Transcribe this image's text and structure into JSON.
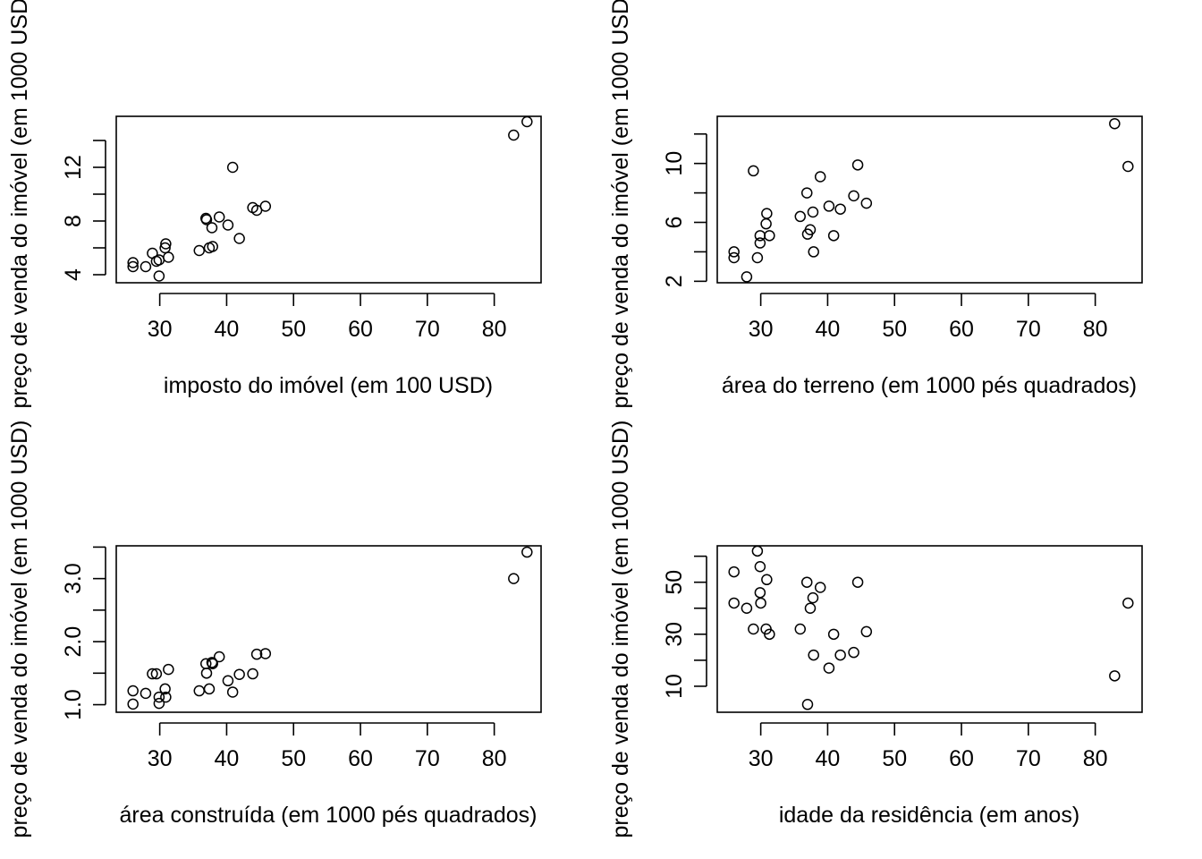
{
  "chart_data": [
    {
      "type": "scatter",
      "xlabel": "imposto do imóvel (em 100 USD)",
      "ylabel": "preço de venda do imóvel (em 1000 USD)",
      "xlim": [
        23.5,
        87
      ],
      "ylim": [
        3.4,
        15.8
      ],
      "xticks": [
        30,
        40,
        50,
        60,
        70,
        80
      ],
      "yticks": [
        4,
        8,
        12
      ],
      "yticks_minor": [
        6,
        10,
        14
      ],
      "x": [
        26.0,
        26.0,
        27.9,
        28.9,
        29.5,
        29.9,
        29.9,
        30.8,
        30.9,
        31.3,
        35.9,
        36.9,
        37.0,
        37.4,
        37.8,
        37.9,
        38.9,
        40.2,
        40.9,
        41.9,
        43.9,
        44.5,
        45.8,
        82.9,
        84.9
      ],
      "y": [
        4.9,
        4.6,
        4.6,
        5.6,
        5.0,
        3.9,
        5.1,
        6.0,
        6.3,
        5.3,
        5.8,
        8.2,
        8.1,
        6.0,
        7.5,
        6.1,
        8.3,
        7.7,
        12.0,
        6.7,
        9.0,
        8.8,
        9.1,
        14.4,
        15.4
      ]
    },
    {
      "type": "scatter",
      "xlabel": "área do terreno (em 1000 pés quadrados)",
      "ylabel": "preço de venda do imóvel (em 1000 USD)",
      "xlim": [
        23.5,
        87
      ],
      "ylim": [
        1.9,
        13.2
      ],
      "xticks": [
        30,
        40,
        50,
        60,
        70,
        80
      ],
      "yticks": [
        2,
        6,
        10
      ],
      "yticks_minor": [
        4,
        8,
        12
      ],
      "x": [
        26.0,
        26.0,
        27.9,
        28.9,
        29.5,
        29.9,
        29.9,
        30.8,
        30.9,
        31.3,
        35.9,
        36.9,
        37.0,
        37.4,
        37.8,
        37.9,
        38.9,
        40.2,
        40.9,
        41.9,
        43.9,
        44.5,
        45.8,
        82.9,
        84.9
      ],
      "y": [
        4.0,
        3.6,
        2.3,
        9.5,
        3.6,
        4.6,
        5.1,
        5.9,
        6.6,
        5.1,
        6.4,
        8.0,
        5.2,
        5.5,
        6.7,
        4.0,
        9.1,
        7.1,
        5.1,
        6.9,
        7.8,
        9.9,
        7.3,
        12.7,
        9.8
      ]
    },
    {
      "type": "scatter",
      "xlabel": "área construída (em 1000 pés quadrados)",
      "ylabel": "preço de venda do imóvel (em 1000 USD)",
      "xlim": [
        23.5,
        87
      ],
      "ylim": [
        0.88,
        3.52
      ],
      "xticks": [
        30,
        40,
        50,
        60,
        70,
        80
      ],
      "yticks": [
        1.0,
        2.0,
        3.0
      ],
      "ytick_labels": [
        "1.0",
        "2.0",
        "3.0"
      ],
      "yticks_minor": [
        1.5,
        2.5,
        3.5
      ],
      "x": [
        26.0,
        26.0,
        27.9,
        28.9,
        29.5,
        29.9,
        29.9,
        30.8,
        30.9,
        31.3,
        35.9,
        36.9,
        37.0,
        37.4,
        37.8,
        37.9,
        38.9,
        40.2,
        40.9,
        41.9,
        43.9,
        44.5,
        45.8,
        82.9,
        84.9
      ],
      "y": [
        1.22,
        1.01,
        1.18,
        1.49,
        1.49,
        1.12,
        1.02,
        1.25,
        1.12,
        1.56,
        1.22,
        1.65,
        1.5,
        1.25,
        1.67,
        1.65,
        1.76,
        1.38,
        1.2,
        1.48,
        1.49,
        1.8,
        1.81,
        3.0,
        3.42
      ]
    },
    {
      "type": "scatter",
      "xlabel": "idade da residência (em anos)",
      "ylabel": "preço de venda do imóvel (em 1000 USD)",
      "xlim": [
        23.5,
        87
      ],
      "ylim": [
        0,
        64
      ],
      "xticks": [
        30,
        40,
        50,
        60,
        70,
        80
      ],
      "yticks": [
        10,
        30,
        50
      ],
      "yticks_minor": [
        20,
        40,
        60
      ],
      "x": [
        26.0,
        26.0,
        27.9,
        28.9,
        29.5,
        29.9,
        29.9,
        30.0,
        30.8,
        30.9,
        31.3,
        35.9,
        36.9,
        37.0,
        37.4,
        37.8,
        37.9,
        38.9,
        40.2,
        40.9,
        41.9,
        43.9,
        44.5,
        45.8,
        82.9,
        84.9
      ],
      "y": [
        42,
        54,
        40,
        32,
        62,
        56,
        46,
        42,
        32,
        51,
        30,
        32,
        50,
        3,
        40,
        44,
        22,
        48,
        17,
        30,
        22,
        23,
        50,
        31,
        14,
        42
      ]
    }
  ]
}
